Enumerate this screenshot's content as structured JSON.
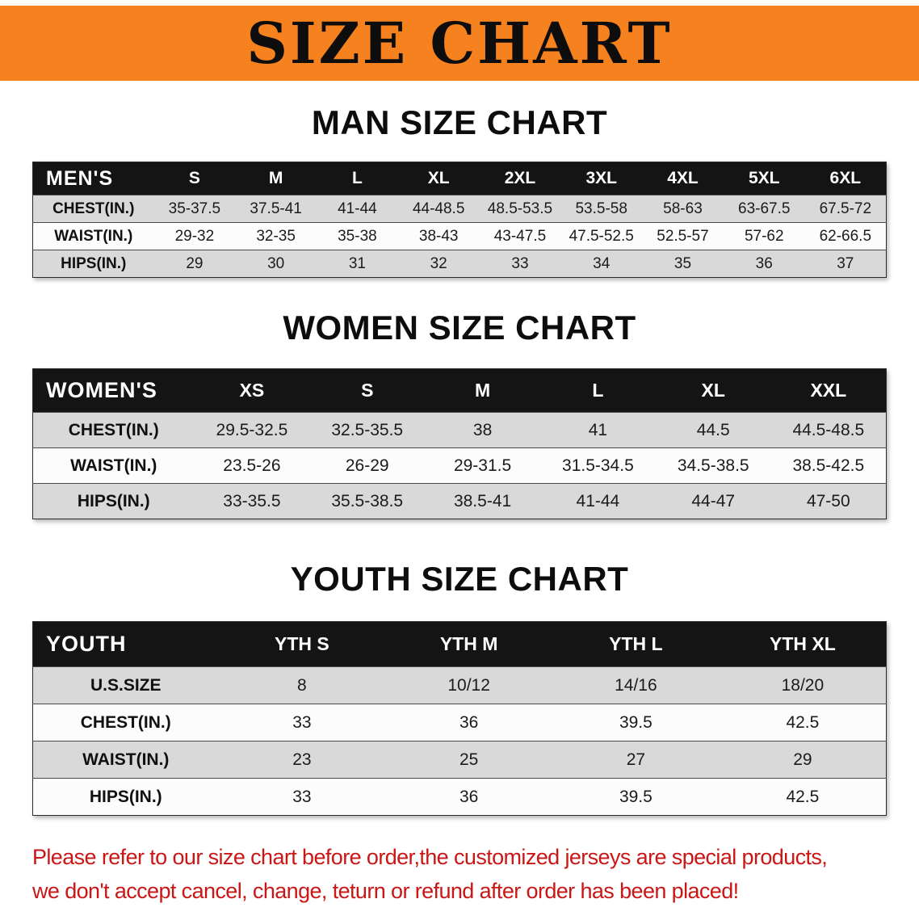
{
  "banner": {
    "title": "SIZE CHART",
    "bg_color": "#F5821E",
    "text_color": "#0d0d0d"
  },
  "sections": [
    {
      "id": "men",
      "heading": "MAN SIZE CHART",
      "table": {
        "header": [
          "MEN'S",
          "S",
          "M",
          "L",
          "XL",
          "2XL",
          "3XL",
          "4XL",
          "5XL",
          "6XL"
        ],
        "rows": [
          [
            "CHEST(IN.)",
            "35-37.5",
            "37.5-41",
            "41-44",
            "44-48.5",
            "48.5-53.5",
            "53.5-58",
            "58-63",
            "63-67.5",
            "67.5-72"
          ],
          [
            "WAIST(IN.)",
            "29-32",
            "32-35",
            "35-38",
            "38-43",
            "43-47.5",
            "47.5-52.5",
            "52.5-57",
            "57-62",
            "62-66.5"
          ],
          [
            "HIPS(IN.)",
            "29",
            "30",
            "31",
            "32",
            "33",
            "34",
            "35",
            "36",
            "37"
          ]
        ]
      }
    },
    {
      "id": "women",
      "heading": "WOMEN SIZE CHART",
      "table": {
        "header": [
          "WOMEN'S",
          "XS",
          "S",
          "M",
          "L",
          "XL",
          "XXL"
        ],
        "rows": [
          [
            "CHEST(IN.)",
            "29.5-32.5",
            "32.5-35.5",
            "38",
            "41",
            "44.5",
            "44.5-48.5"
          ],
          [
            "WAIST(IN.)",
            "23.5-26",
            "26-29",
            "29-31.5",
            "31.5-34.5",
            "34.5-38.5",
            "38.5-42.5"
          ],
          [
            "HIPS(IN.)",
            "33-35.5",
            "35.5-38.5",
            "38.5-41",
            "41-44",
            "44-47",
            "47-50"
          ]
        ]
      }
    },
    {
      "id": "youth",
      "heading": "YOUTH SIZE CHART",
      "table": {
        "header": [
          "YOUTH",
          "YTH S",
          "YTH M",
          "YTH L",
          "YTH XL"
        ],
        "rows": [
          [
            "U.S.SIZE",
            "8",
            "10/12",
            "14/16",
            "18/20"
          ],
          [
            "CHEST(IN.)",
            "33",
            "36",
            "39.5",
            "42.5"
          ],
          [
            "WAIST(IN.)",
            "23",
            "25",
            "27",
            "29"
          ],
          [
            "HIPS(IN.)",
            "33",
            "36",
            "39.5",
            "42.5"
          ]
        ]
      }
    }
  ],
  "disclaimer": {
    "line1": "Please refer to our size chart before order,the customized jerseys are special products,",
    "line2": "we don't accept cancel, change, teturn or refund after order has been placed!",
    "color": "#cb1616"
  }
}
